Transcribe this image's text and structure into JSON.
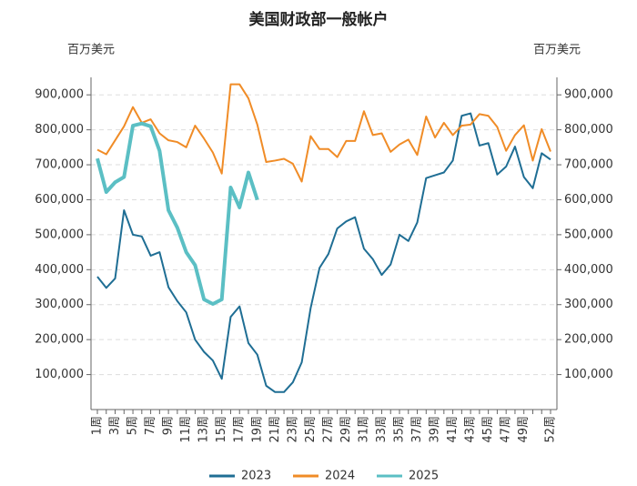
{
  "chart_data": {
    "type": "line",
    "title": "美国财政部一般帐户",
    "y_label": "百万美元",
    "y2_label": "百万美元",
    "categories": [
      "1周",
      null,
      "3周",
      null,
      "5周",
      null,
      "7周",
      null,
      "9周",
      null,
      "11周",
      null,
      "13周",
      null,
      "15周",
      null,
      "17周",
      null,
      "19周",
      null,
      "21周",
      null,
      "23周",
      null,
      "25周",
      null,
      "27周",
      null,
      "29周",
      null,
      "31周",
      null,
      "33周",
      null,
      "35周",
      null,
      "37周",
      null,
      "39周",
      null,
      "41周",
      null,
      "43周",
      null,
      "45周",
      null,
      "47周",
      null,
      "49周",
      null,
      null,
      "52周"
    ],
    "series": [
      {
        "name": "2023",
        "color": "#1f6e94",
        "values": [
          380000,
          348000,
          375000,
          570000,
          500000,
          495000,
          440000,
          450000,
          350000,
          310000,
          278000,
          200000,
          165000,
          140000,
          88000,
          265000,
          295000,
          190000,
          157000,
          68000,
          50000,
          50000,
          78000,
          135000,
          290000,
          405000,
          445000,
          518000,
          538000,
          550000,
          460000,
          430000,
          385000,
          415000,
          500000,
          482000,
          535000,
          662000,
          670000,
          678000,
          712000,
          840000,
          847000,
          755000,
          762000,
          672000,
          695000,
          752000,
          665000,
          633000,
          733000,
          715000
        ]
      },
      {
        "name": "2024",
        "color": "#f08c27",
        "values": [
          743000,
          730000,
          770000,
          810000,
          865000,
          820000,
          830000,
          790000,
          770000,
          765000,
          750000,
          812000,
          775000,
          735000,
          675000,
          930000,
          930000,
          890000,
          815000,
          708000,
          712000,
          717000,
          703000,
          652000,
          782000,
          745000,
          745000,
          722000,
          768000,
          768000,
          853000,
          785000,
          790000,
          737000,
          758000,
          772000,
          728000,
          838000,
          778000,
          820000,
          785000,
          812000,
          815000,
          845000,
          840000,
          808000,
          740000,
          785000,
          813000,
          712000,
          802000,
          738000
        ]
      },
      {
        "name": "2025",
        "color": "#5bbfc4",
        "values": [
          718000,
          622000,
          650000,
          665000,
          812000,
          818000,
          810000,
          740000,
          570000,
          520000,
          450000,
          413000,
          315000,
          302000,
          315000,
          635000,
          578000,
          678000,
          600000,
          null,
          null,
          null,
          null,
          null,
          null,
          null,
          null,
          null,
          null,
          null,
          null,
          null,
          null,
          null,
          null,
          null,
          null,
          null,
          null,
          null,
          null,
          null,
          null,
          null,
          null,
          null,
          null,
          null,
          null,
          null,
          null,
          null
        ]
      }
    ],
    "ylim": [
      0,
      950000
    ],
    "yticks": [
      {
        "value": 100000,
        "label": "100,000"
      },
      {
        "value": 200000,
        "label": "200,000"
      },
      {
        "value": 300000,
        "label": "300,000"
      },
      {
        "value": 400000,
        "label": "400,000"
      },
      {
        "value": 500000,
        "label": "500,000"
      },
      {
        "value": 600000,
        "label": "600,000"
      },
      {
        "value": 700000,
        "label": "700,000"
      },
      {
        "value": 800000,
        "label": "800,000"
      },
      {
        "value": 900000,
        "label": "900,000"
      }
    ],
    "y2lim": [
      0,
      950000
    ],
    "y2ticks": [
      {
        "value": 100000,
        "label": "100,000"
      },
      {
        "value": 200000,
        "label": "200,000"
      },
      {
        "value": 300000,
        "label": "300,000"
      },
      {
        "value": 400000,
        "label": "400,000"
      },
      {
        "value": 500000,
        "label": "500,000"
      },
      {
        "value": 600000,
        "label": "600,000"
      },
      {
        "value": 700000,
        "label": "700,000"
      },
      {
        "value": 800000,
        "label": "800,000"
      },
      {
        "value": 900000,
        "label": "900,000"
      }
    ],
    "grid": true
  }
}
